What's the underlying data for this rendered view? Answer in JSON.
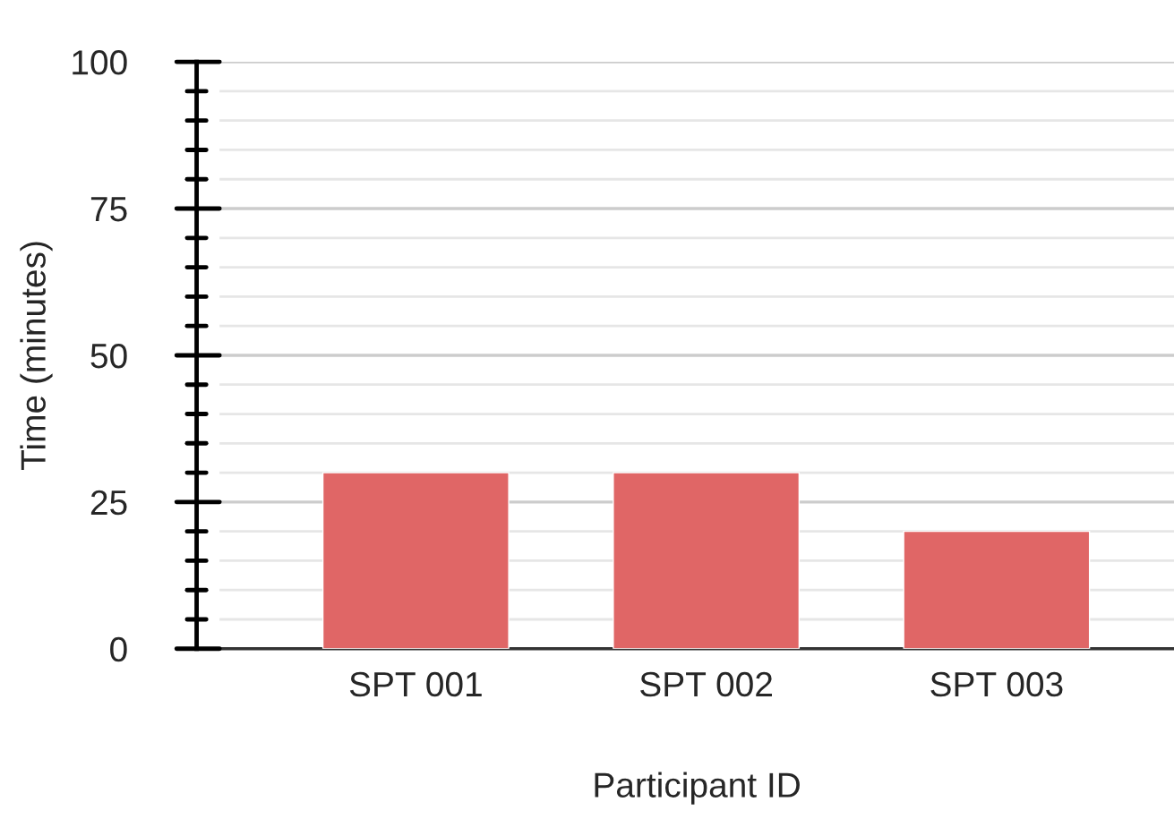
{
  "chart_data": {
    "type": "bar",
    "xlabel": "Participant ID",
    "ylabel": "Time (minutes)",
    "categories": [
      "SPT 001",
      "SPT 002",
      "SPT 003"
    ],
    "series": [
      {
        "color": "#e06666",
        "values": [
          30,
          30,
          20
        ]
      }
    ],
    "ylim": [
      0,
      100
    ],
    "yticks": [
      0,
      {
        "value": 5,
        "label": null
      },
      {
        "value": 10,
        "label": null
      },
      {
        "value": 15,
        "label": null
      },
      {
        "value": 20,
        "label": null
      },
      25,
      {
        "value": 30,
        "label": null
      },
      {
        "value": 35,
        "label": null
      },
      {
        "value": 40,
        "label": null
      },
      {
        "value": 45,
        "label": null
      },
      50,
      {
        "value": 55,
        "label": null
      },
      {
        "value": 60,
        "label": null
      },
      {
        "value": 65,
        "label": null
      },
      {
        "value": 70,
        "label": null
      },
      75,
      {
        "value": 80,
        "label": null
      },
      {
        "value": 85,
        "label": null
      },
      {
        "value": 90,
        "label": null
      },
      {
        "value": 95,
        "label": null
      },
      100
    ],
    "grid": "y"
  }
}
